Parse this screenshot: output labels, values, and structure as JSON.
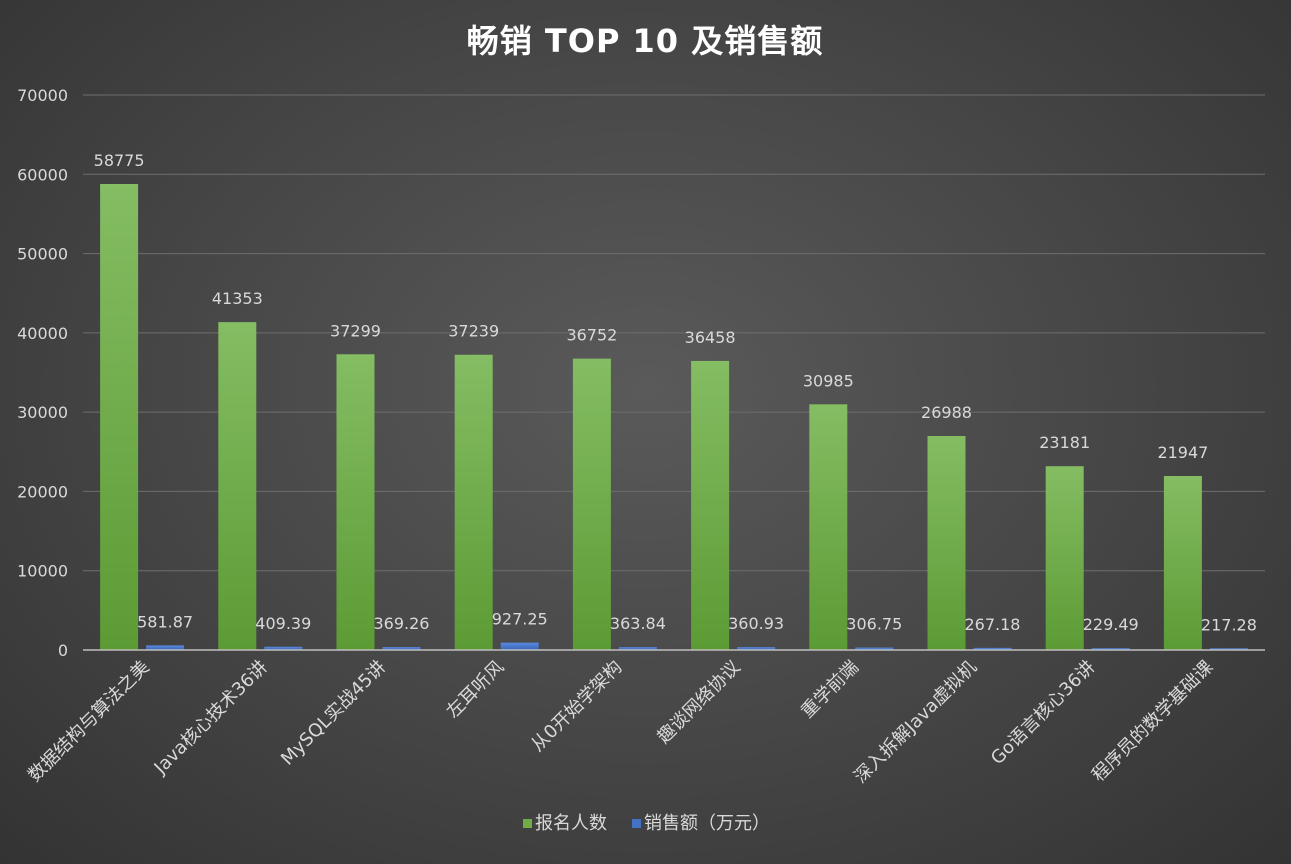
{
  "chart_data": {
    "type": "bar",
    "title": "畅销 TOP 10 及销售额",
    "categories": [
      "数据结构与算法之美",
      "Java核心技术36讲",
      "MySQL实战45讲",
      "左耳听风",
      "从0开始学架构",
      "趣谈网络协议",
      "重学前端",
      "深入拆解Java虚拟机",
      "Go语言核心36讲",
      "程序员的数学基础课"
    ],
    "series": [
      {
        "name": "报名人数",
        "color": "#70ad47",
        "values": [
          58775,
          41353,
          37299,
          37239,
          36752,
          36458,
          30985,
          26988,
          23181,
          21947
        ],
        "labels": [
          "58775",
          "41353",
          "37299",
          "37239",
          "36752",
          "36458",
          "30985",
          "26988",
          "23181",
          "21947"
        ]
      },
      {
        "name": "销售额（万元）",
        "color": "#4472c4",
        "values": [
          581.87,
          409.39,
          369.26,
          927.25,
          363.84,
          360.93,
          306.75,
          267.18,
          229.49,
          217.28
        ],
        "labels": [
          "581.87",
          "409.39",
          "369.26",
          "927.25",
          "363.84",
          "360.93",
          "306.75",
          "267.18",
          "229.49",
          "217.28"
        ]
      }
    ],
    "yticks": [
      "0",
      "10000",
      "20000",
      "30000",
      "40000",
      "50000",
      "60000",
      "70000"
    ],
    "ylim": [
      0,
      70000
    ],
    "grid": true,
    "legend_position": "bottom"
  }
}
